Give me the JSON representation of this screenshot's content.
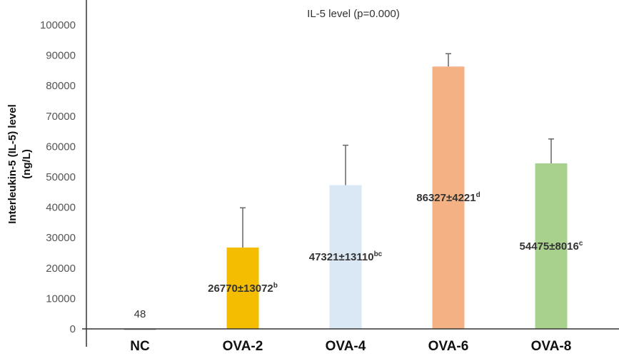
{
  "chart_data": {
    "type": "bar",
    "title": "IL-5 level (p=0.000)",
    "ylabel": "Interleukin-5 (IL-5) level (ng/L)",
    "ylabel_lines": [
      "Interleukin-5 (IL-5) level",
      "(ng/L)"
    ],
    "xlabel": "",
    "ylim": [
      0,
      100000
    ],
    "yticks": [
      0,
      10000,
      20000,
      30000,
      40000,
      50000,
      60000,
      70000,
      80000,
      90000,
      100000
    ],
    "grid": false,
    "categories": [
      "NC",
      "OVA-2",
      "OVA-4",
      "OVA-6",
      "OVA-8"
    ],
    "values": [
      48,
      26770,
      47321,
      86327,
      54475
    ],
    "errors": [
      0,
      13072,
      13110,
      4221,
      8016
    ],
    "colors": [
      "#7f7f7f",
      "#f5bd00",
      "#dae8f6",
      "#f4b183",
      "#a9d18e"
    ],
    "data_labels": [
      {
        "text": "48",
        "sup": ""
      },
      {
        "text": "26770±13072",
        "sup": "b"
      },
      {
        "text": "47321±13110",
        "sup": "bc"
      },
      {
        "text": "86327±4221",
        "sup": "d"
      },
      {
        "text": "54475±8016",
        "sup": "c"
      }
    ]
  }
}
